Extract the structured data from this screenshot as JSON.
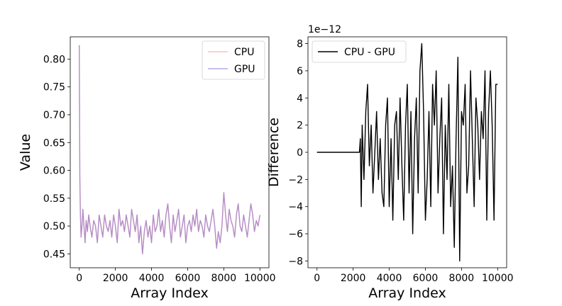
{
  "chart_data": [
    {
      "type": "line",
      "xlabel": "Array Index",
      "ylabel": "Value",
      "xlim": [
        -500,
        10500
      ],
      "ylim": [
        0.425,
        0.84
      ],
      "xticks": [
        0,
        2000,
        4000,
        6000,
        8000,
        10000
      ],
      "yticks": [
        0.45,
        0.5,
        0.55,
        0.6,
        0.65,
        0.7,
        0.75,
        0.8
      ],
      "legend_placement": "top-right",
      "series": [
        {
          "name": "CPU",
          "color": "#ff8080",
          "alpha": 0.5
        },
        {
          "name": "GPU",
          "color": "#6a5acd",
          "alpha": 0.5
        }
      ],
      "data_points": {
        "x": [
          0,
          30,
          60,
          100,
          150,
          200,
          260,
          320,
          380,
          450,
          520,
          600,
          700,
          800,
          900,
          1000,
          1100,
          1200,
          1300,
          1400,
          1500,
          1600,
          1700,
          1800,
          1900,
          2000,
          2100,
          2200,
          2300,
          2400,
          2500,
          2600,
          2700,
          2800,
          2900,
          3000,
          3100,
          3200,
          3300,
          3400,
          3500,
          3600,
          3700,
          3800,
          3900,
          4000,
          4100,
          4200,
          4300,
          4400,
          4500,
          4600,
          4700,
          4800,
          4900,
          5000,
          5100,
          5200,
          5300,
          5400,
          5500,
          5600,
          5700,
          5800,
          5900,
          6000,
          6100,
          6200,
          6300,
          6400,
          6500,
          6600,
          6700,
          6800,
          6900,
          7000,
          7100,
          7200,
          7300,
          7400,
          7500,
          7600,
          7700,
          7800,
          7900,
          8000,
          8100,
          8200,
          8300,
          8400,
          8500,
          8600,
          8700,
          8800,
          8900,
          9000,
          9100,
          9200,
          9300,
          9400,
          9500,
          9600,
          9700,
          9800,
          9900,
          10000
        ],
        "y": [
          0.825,
          0.59,
          0.52,
          0.48,
          0.5,
          0.53,
          0.5,
          0.47,
          0.51,
          0.49,
          0.52,
          0.5,
          0.48,
          0.51,
          0.5,
          0.47,
          0.52,
          0.5,
          0.48,
          0.52,
          0.5,
          0.49,
          0.51,
          0.48,
          0.52,
          0.5,
          0.47,
          0.53,
          0.5,
          0.51,
          0.49,
          0.52,
          0.5,
          0.48,
          0.53,
          0.51,
          0.49,
          0.52,
          0.47,
          0.5,
          0.45,
          0.49,
          0.51,
          0.48,
          0.5,
          0.47,
          0.52,
          0.49,
          0.5,
          0.53,
          0.49,
          0.51,
          0.48,
          0.52,
          0.54,
          0.5,
          0.47,
          0.52,
          0.49,
          0.51,
          0.53,
          0.48,
          0.5,
          0.52,
          0.47,
          0.5,
          0.51,
          0.49,
          0.52,
          0.5,
          0.53,
          0.49,
          0.51,
          0.5,
          0.48,
          0.52,
          0.5,
          0.49,
          0.51,
          0.53,
          0.5,
          0.46,
          0.49,
          0.47,
          0.5,
          0.56,
          0.52,
          0.49,
          0.53,
          0.51,
          0.5,
          0.48,
          0.52,
          0.54,
          0.5,
          0.49,
          0.52,
          0.5,
          0.48,
          0.51,
          0.54,
          0.52,
          0.49,
          0.51,
          0.5,
          0.52
        ]
      }
    },
    {
      "type": "line",
      "xlabel": "Array Index",
      "ylabel": "Difference",
      "offset_text": "1e−12",
      "xlim": [
        -500,
        10500
      ],
      "ylim": [
        -8.5,
        8.5
      ],
      "xticks": [
        0,
        2000,
        4000,
        6000,
        8000,
        10000
      ],
      "yticks": [
        -8,
        -6,
        -4,
        -2,
        0,
        2,
        4,
        6,
        8
      ],
      "legend_placement": "top-left",
      "series": [
        {
          "name": "CPU - GPU",
          "color": "#000000"
        }
      ],
      "data_points": {
        "x": [
          0,
          2300,
          2350,
          2400,
          2450,
          2500,
          2600,
          2700,
          2800,
          2900,
          3000,
          3100,
          3200,
          3300,
          3400,
          3500,
          3600,
          3700,
          3800,
          3900,
          4000,
          4100,
          4200,
          4300,
          4400,
          4500,
          4600,
          4700,
          4800,
          4900,
          5000,
          5100,
          5200,
          5300,
          5400,
          5500,
          5600,
          5700,
          5800,
          5900,
          6000,
          6100,
          6200,
          6300,
          6400,
          6500,
          6600,
          6700,
          6800,
          6900,
          7000,
          7100,
          7200,
          7300,
          7400,
          7500,
          7600,
          7700,
          7800,
          7900,
          8000,
          8100,
          8200,
          8300,
          8400,
          8500,
          8600,
          8700,
          8800,
          8900,
          9000,
          9100,
          9200,
          9300,
          9400,
          9500,
          9600,
          9700,
          9800,
          9900,
          10000
        ],
        "y": [
          0,
          0,
          0,
          1,
          -4,
          2,
          -2,
          3,
          5,
          -1,
          2,
          -3,
          0,
          3,
          -2,
          1,
          -3,
          -4,
          2,
          4,
          -4,
          1,
          -5,
          2,
          3,
          -2,
          4,
          -1,
          -5,
          2,
          5,
          -3,
          3,
          -6,
          1,
          4,
          -3,
          6,
          8,
          3,
          -5,
          -2,
          3,
          -4,
          5,
          2,
          6,
          -3,
          1,
          4,
          -6,
          2,
          -2,
          5,
          -4,
          -1,
          -7,
          1,
          7,
          -8,
          3,
          2,
          5,
          -3,
          -1,
          6,
          1,
          -4,
          4,
          2,
          -2,
          3,
          1,
          6,
          -5,
          3,
          6,
          2,
          -5,
          5,
          5
        ]
      }
    }
  ]
}
